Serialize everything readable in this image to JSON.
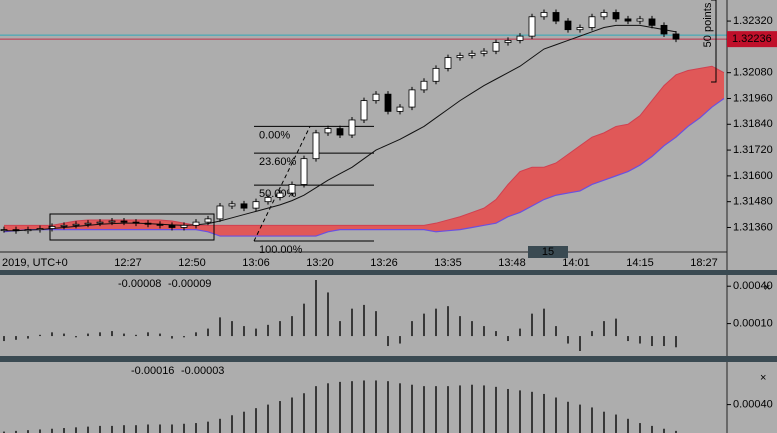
{
  "chart_data": {
    "type": "candlestick",
    "ylim": [
      1.31232,
      1.32418
    ],
    "yticks": [
      {
        "value": 1.3232,
        "label": "1.32320"
      },
      {
        "value": 1.3208,
        "label": "1.32080"
      },
      {
        "value": 1.3196,
        "label": "1.31960"
      },
      {
        "value": 1.3184,
        "label": "1.31840"
      },
      {
        "value": 1.3172,
        "label": "1.31720"
      },
      {
        "value": 1.316,
        "label": "1.31600"
      },
      {
        "value": 1.3148,
        "label": "1.31480"
      },
      {
        "value": 1.3136,
        "label": "1.31360"
      }
    ],
    "current_price": 1.32236,
    "x_labels": [
      "2019, UTC+0",
      "12:27",
      "12:50",
      "13:06",
      "13:20",
      "13:26",
      "13:35",
      "13:48",
      "14:01",
      "14:15",
      "18:27"
    ],
    "close": [
      1.3135,
      1.31345,
      1.3135,
      1.31355,
      1.31365,
      1.3137,
      1.31375,
      1.3138,
      1.31385,
      1.3139,
      1.31385,
      1.3138,
      1.31375,
      1.3137,
      1.3136,
      1.3137,
      1.31385,
      1.314,
      1.3146,
      1.3147,
      1.3145,
      1.3148,
      1.315,
      1.3152,
      1.3156,
      1.3168,
      1.318,
      1.3182,
      1.3179,
      1.3186,
      1.3195,
      1.3198,
      1.319,
      1.3192,
      1.32,
      1.3204,
      1.321,
      1.3215,
      1.3216,
      1.3217,
      1.3218,
      1.3222,
      1.3223,
      1.3225,
      1.3234,
      1.3236,
      1.3232,
      1.3228,
      1.3229,
      1.3234,
      1.3236,
      1.3233,
      1.3232,
      1.3233,
      1.323,
      1.3226,
      1.32236
    ],
    "ma": [
      1.31345,
      1.31345,
      1.31348,
      1.3135,
      1.31355,
      1.3136,
      1.31365,
      1.3137,
      1.31375,
      1.31378,
      1.3138,
      1.3138,
      1.31378,
      1.31375,
      1.31372,
      1.3137,
      1.31372,
      1.31378,
      1.3139,
      1.31405,
      1.3142,
      1.31435,
      1.3145,
      1.31465,
      1.31485,
      1.3151,
      1.31545,
      1.3158,
      1.3161,
      1.3164,
      1.3168,
      1.3172,
      1.31745,
      1.3177,
      1.318,
      1.3183,
      1.3187,
      1.3191,
      1.3195,
      1.31985,
      1.3202,
      1.3205,
      1.3208,
      1.3211,
      1.3215,
      1.3219,
      1.3221,
      1.3223,
      1.3225,
      1.3227,
      1.3229,
      1.323,
      1.323,
      1.323,
      1.3229,
      1.3228,
      1.3227
    ],
    "span_a": [
      1.3137,
      1.3137,
      1.3137,
      1.3137,
      1.3137,
      1.3138,
      1.3139,
      1.31395,
      1.31395,
      1.31395,
      1.31395,
      1.31395,
      1.31395,
      1.31395,
      1.3139,
      1.3138,
      1.3137,
      1.3137,
      1.3137,
      1.3137,
      1.3137,
      1.3137,
      1.3137,
      1.3137,
      1.3137,
      1.3137,
      1.3137,
      1.3137,
      1.3137,
      1.3137,
      1.3137,
      1.3137,
      1.3137,
      1.3137,
      1.3137,
      1.3137,
      1.3138,
      1.31395,
      1.3141,
      1.3143,
      1.3145,
      1.3149,
      1.3156,
      1.3162,
      1.3164,
      1.3164,
      1.3166,
      1.317,
      1.3174,
      1.3178,
      1.318,
      1.3183,
      1.3184,
      1.3188,
      1.3195,
      1.3202,
      1.3207,
      1.3209,
      1.321,
      1.3211,
      1.3208
    ],
    "span_b": [
      1.3134,
      1.31345,
      1.3135,
      1.3135,
      1.3135,
      1.3135,
      1.3135,
      1.3135,
      1.3135,
      1.3135,
      1.3135,
      1.3135,
      1.3135,
      1.3135,
      1.3135,
      1.3135,
      1.3135,
      1.3134,
      1.3132,
      1.3132,
      1.3132,
      1.3132,
      1.3132,
      1.3132,
      1.3132,
      1.3132,
      1.3132,
      1.3134,
      1.3135,
      1.3135,
      1.3135,
      1.3135,
      1.3135,
      1.3135,
      1.3135,
      1.3135,
      1.3134,
      1.31345,
      1.3135,
      1.3136,
      1.3137,
      1.3138,
      1.3141,
      1.3143,
      1.3146,
      1.3149,
      1.3151,
      1.3152,
      1.3153,
      1.3156,
      1.3158,
      1.316,
      1.3162,
      1.3165,
      1.3169,
      1.3174,
      1.3178,
      1.3183,
      1.3187,
      1.3192,
      1.3196
    ],
    "fib": [
      {
        "label": "0.00%",
        "price": 1.3183
      },
      {
        "label": "23.60%",
        "price": 1.31706
      },
      {
        "label": "50.00%",
        "price": 1.31557
      },
      {
        "label": "100.00%",
        "price": 1.31297
      }
    ],
    "range_label": "50 points",
    "scroll_label": "15",
    "osc1": {
      "readout": [
        "-0.00008",
        "-0.00009"
      ],
      "ylim": [
        -0.00016,
        0.00049
      ],
      "yticks": [
        {
          "value": 0.0004,
          "label": "0.00040"
        },
        {
          "value": 0.0001,
          "label": "0.00010"
        }
      ],
      "values": [
        -4e-05,
        -3e-05,
        -2e-05,
        1e-05,
        3e-05,
        2e-05,
        -1e-05,
        2e-05,
        3e-05,
        4e-05,
        2e-05,
        1e-05,
        3e-05,
        2e-05,
        -2e-05,
        -1e-05,
        3e-05,
        6e-05,
        0.00015,
        0.00012,
        8e-05,
        6e-05,
        9e-05,
        0.00012,
        0.00016,
        0.00026,
        0.00045,
        0.00035,
        0.00012,
        0.00022,
        0.00025,
        0.0002,
        -8e-05,
        -6e-05,
        0.00012,
        0.00018,
        0.00022,
        0.00024,
        0.00016,
        0.00012,
        8e-05,
        4e-05,
        -4e-05,
        6e-05,
        0.00018,
        0.00022,
        8e-05,
        -6e-05,
        -0.00012,
        4e-05,
        0.00012,
        0.00014,
        -4e-05,
        -6e-05,
        -8e-05,
        -8e-05,
        -9e-05
      ]
    },
    "osc2": {
      "readout": [
        "-0.00016",
        "-0.00003"
      ],
      "ylim": [
        0,
        0.001
      ],
      "yticks": [
        {
          "value": 0.0004,
          "label": "0.00040"
        }
      ],
      "values": [
        2e-05,
        3e-05,
        4e-05,
        5e-05,
        6e-05,
        7e-05,
        8e-05,
        9e-05,
        0.0001,
        0.0001,
        0.00011,
        0.00011,
        0.00012,
        0.00012,
        0.00012,
        0.00013,
        0.00014,
        0.00016,
        0.0002,
        0.00025,
        0.0003,
        0.00035,
        0.0004,
        0.00045,
        0.0005,
        0.00056,
        0.00066,
        0.0007,
        0.00072,
        0.00073,
        0.00074,
        0.00074,
        0.00073,
        0.0007,
        0.00068,
        0.00066,
        0.00066,
        0.00066,
        0.00067,
        0.00068,
        0.00067,
        0.00065,
        0.00062,
        0.0006,
        0.00058,
        0.00055,
        0.0005,
        0.00044,
        0.0004,
        0.00036,
        0.0003,
        0.00026,
        0.0002,
        0.00014,
        0.0001,
        6e-05,
        3e-05
      ]
    }
  }
}
